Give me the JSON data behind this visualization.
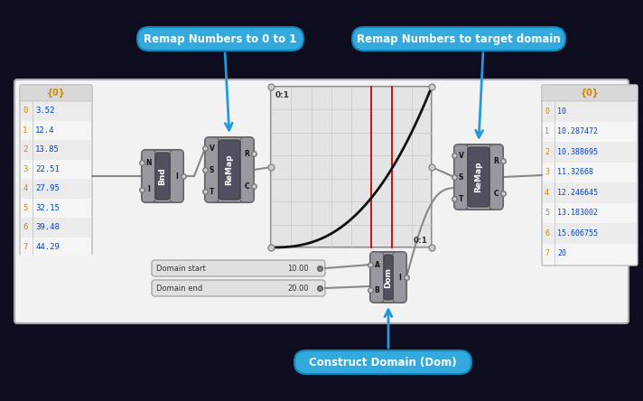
{
  "bg_color": "#0d0d1f",
  "work_bg": "#f2f2f2",
  "work_border": "#aaaaaa",
  "title1": "Remap Numbers to 0 to 1",
  "title2": "Remap Numbers to target domain",
  "title3": "Construct Domain (Dom)",
  "input_list_header": "{0}",
  "input_values": [
    "0  3.52",
    "1  12.4",
    "2  13.85",
    "3  22.51",
    "4  27.95",
    "5  32.15",
    "6  39.48",
    "7  44.29"
  ],
  "output_list_header": "{0}",
  "output_values": [
    "0  10",
    "1  10.287472",
    "2  10.388695",
    "3  11.32668",
    "4  12.246645",
    "5  13.183002",
    "6  15.606755",
    "7  20"
  ],
  "domain_start_label": "Domain start",
  "domain_start_value": "10.00",
  "domain_end_label": "Domain end",
  "domain_end_value": "20.00",
  "arrow_color": "#2299dd",
  "wire_color": "#888888",
  "graph_grid_color": "#cccccc",
  "graph_red_lines": "#cc0000",
  "graph_curve_color": "#111111",
  "callout_bg": "#33aadd",
  "callout_border": "#1188bb",
  "list_header_color": "#cc8800",
  "list_index_color": "#cc8800",
  "list_value_color": "#0044cc",
  "node_body": "#b0b0b8",
  "node_port": "#9898a0",
  "node_center": "#505060",
  "node_text": "#ffffff",
  "slider_bg": "#e0e0e0",
  "slider_border": "#aaaaaa",
  "graph_label_topleft": "0:1",
  "graph_label_botright": "0:1"
}
